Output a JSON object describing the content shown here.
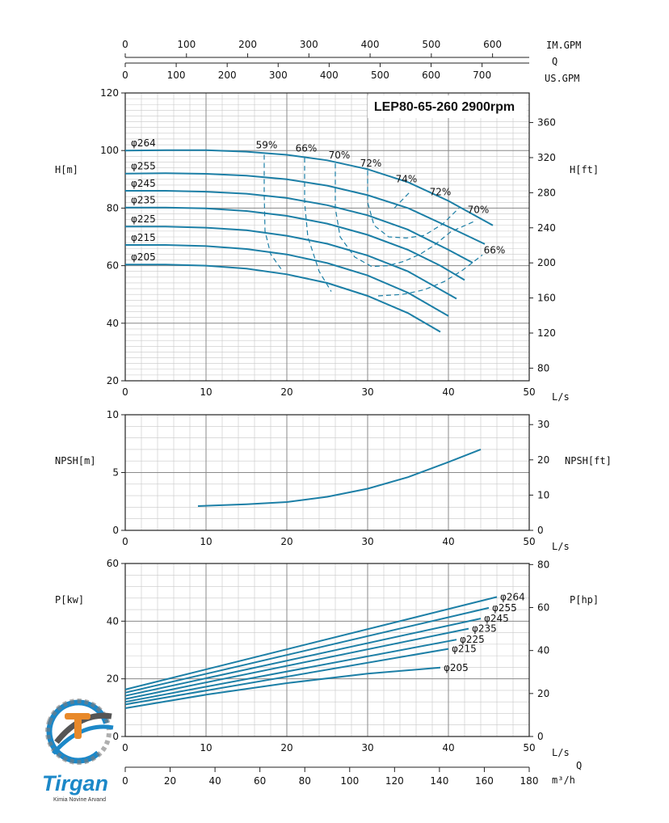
{
  "chart_data": [
    {
      "type": "line",
      "title": "LEP80-65-260 2900rpm",
      "xlabel": "L/s",
      "ylabel": "H[m]",
      "y2label": "H[ft]",
      "xlim": [
        0,
        50
      ],
      "ylim": [
        20,
        120
      ],
      "y2lim": [
        65.6,
        393.7
      ],
      "x_ticks": [
        0,
        10,
        20,
        30,
        40,
        50
      ],
      "y_ticks": [
        20,
        40,
        60,
        80,
        100,
        120
      ],
      "y2_ticks": [
        80,
        120,
        160,
        200,
        240,
        280,
        320,
        360
      ],
      "top_axes": [
        {
          "label": "IM.GPM",
          "ticks": [
            0,
            100,
            200,
            300,
            400,
            500,
            600
          ],
          "per_ls": 13.198
        },
        {
          "label": "Q",
          "ticks": [],
          "per_ls": 0
        },
        {
          "label": "US.GPM",
          "ticks": [
            0,
            100,
            200,
            300,
            400,
            500,
            600,
            700
          ],
          "per_ls": 15.85
        }
      ],
      "grid": true,
      "series": [
        {
          "name": "φ264",
          "x": [
            0,
            5,
            10,
            15,
            20,
            25,
            30,
            35,
            40,
            45.5
          ],
          "y": [
            100,
            100.1,
            100.1,
            99.6,
            98.5,
            96.6,
            93.5,
            89,
            82.5,
            74
          ]
        },
        {
          "name": "φ255",
          "x": [
            0,
            5,
            10,
            15,
            20,
            25,
            30,
            35,
            40,
            44.5
          ],
          "y": [
            92,
            92.1,
            91.9,
            91.3,
            90,
            87.8,
            84.5,
            80,
            73.5,
            67.5
          ]
        },
        {
          "name": "φ245",
          "x": [
            0,
            5,
            10,
            15,
            20,
            25,
            30,
            35,
            40,
            43
          ],
          "y": [
            86,
            86,
            85.7,
            85,
            83.5,
            81,
            77.5,
            72.5,
            65.5,
            61
          ]
        },
        {
          "name": "φ235",
          "x": [
            0,
            5,
            10,
            15,
            20,
            25,
            30,
            35,
            39,
            42
          ],
          "y": [
            80.2,
            80.2,
            79.9,
            79,
            77.3,
            74.6,
            70.7,
            65.5,
            60,
            55
          ]
        },
        {
          "name": "φ225",
          "x": [
            0,
            5,
            10,
            15,
            20,
            25,
            30,
            35,
            41
          ],
          "y": [
            73.6,
            73.6,
            73.2,
            72.3,
            70.4,
            67.6,
            63.5,
            58,
            48.5
          ]
        },
        {
          "name": "φ215",
          "x": [
            0,
            5,
            10,
            15,
            20,
            25,
            30,
            35,
            40
          ],
          "y": [
            67.2,
            67.2,
            66.8,
            65.8,
            63.9,
            60.9,
            56.6,
            50.6,
            42.5
          ]
        },
        {
          "name": "φ205",
          "x": [
            0,
            5,
            10,
            15,
            20,
            25,
            30,
            35,
            39
          ],
          "y": [
            60.4,
            60.4,
            60,
            59,
            57,
            54,
            49.5,
            43.5,
            37
          ]
        }
      ],
      "efficiency_curves": [
        {
          "label": "59%",
          "x": [
            17.2,
            17.2,
            17.3,
            18,
            19.5
          ],
          "y": [
            98.5,
            85,
            72,
            64,
            58
          ]
        },
        {
          "label": "66%",
          "x": [
            22.2,
            22.2,
            22.6,
            24,
            25.5
          ],
          "y": [
            97.5,
            82,
            70,
            58,
            51
          ]
        },
        {
          "label": "70%",
          "x": [
            26,
            26,
            26.6,
            28.4,
            30.5,
            32.5,
            34.5,
            36.5,
            38.2,
            40.3,
            43.3
          ],
          "y": [
            95.5,
            80,
            70,
            63,
            59.7,
            60,
            61.5,
            64,
            67,
            71.8,
            75.5
          ]
        },
        {
          "label": "72%",
          "x": [
            30,
            30,
            30.8,
            32.6,
            34.8,
            37,
            39.3,
            41.3
          ],
          "y": [
            93,
            82,
            74,
            70,
            69.6,
            70.5,
            74.5,
            80
          ]
        },
        {
          "label": "74%",
          "x": [
            33.3,
            35.2
          ],
          "y": [
            80,
            85.5
          ]
        },
        {
          "label": "72%",
          "x": [],
          "y": []
        },
        {
          "label": "70%",
          "x": [],
          "y": []
        },
        {
          "label": "66%",
          "x": [
            31.3,
            34.3,
            37,
            39.5,
            41.8,
            44.2
          ],
          "y": [
            49.5,
            50,
            51.6,
            54.5,
            58.5,
            63.7
          ]
        }
      ],
      "efficiency_labels": [
        {
          "text": "59%",
          "x": 17.5,
          "y": 100.8
        },
        {
          "text": "66%",
          "x": 22.4,
          "y": 99.6
        },
        {
          "text": "70%",
          "x": 26.5,
          "y": 97.3
        },
        {
          "text": "72%",
          "x": 30.4,
          "y": 94.5
        },
        {
          "text": "74%",
          "x": 34.8,
          "y": 88.9
        },
        {
          "text": "72%",
          "x": 39.0,
          "y": 84.4
        },
        {
          "text": "70%",
          "x": 43.7,
          "y": 78.3
        },
        {
          "text": "66%",
          "x": 45.7,
          "y": 64.2
        }
      ]
    },
    {
      "type": "line",
      "xlabel": "L/s",
      "ylabel": "NPSH[m]",
      "y2label": "NPSH[ft]",
      "xlim": [
        0,
        50
      ],
      "ylim": [
        0,
        10
      ],
      "y2lim": [
        0,
        32.8
      ],
      "x_ticks": [
        0,
        10,
        20,
        30,
        40,
        50
      ],
      "y_ticks": [
        0,
        5,
        10
      ],
      "y2_ticks": [
        0,
        10,
        20,
        30
      ],
      "grid": true,
      "series": [
        {
          "name": "",
          "x": [
            9,
            15,
            20,
            25,
            30,
            35,
            40,
            44
          ],
          "y": [
            2.1,
            2.25,
            2.45,
            2.9,
            3.6,
            4.6,
            5.9,
            7.0
          ]
        }
      ]
    },
    {
      "type": "line",
      "xlabel": "L/s",
      "ylabel": "P[kw]",
      "y2label": "P[hp]",
      "xlim": [
        0,
        50
      ],
      "ylim": [
        0,
        60
      ],
      "y2lim": [
        0,
        80.5
      ],
      "x_ticks": [
        0,
        10,
        20,
        30,
        40,
        50
      ],
      "y_ticks": [
        0,
        20,
        40,
        60
      ],
      "y2_ticks": [
        0,
        20,
        40,
        60,
        80
      ],
      "x2label": "m³/h",
      "x2_label_top": "Q",
      "x2_ticks": [
        0,
        20,
        40,
        60,
        80,
        100,
        120,
        140,
        160,
        180
      ],
      "x2_per_ls": 3.6,
      "grid": true,
      "series": [
        {
          "name": "φ264",
          "x": [
            0,
            46
          ],
          "y": [
            16.3,
            48.4
          ]
        },
        {
          "name": "φ255",
          "x": [
            0,
            45
          ],
          "y": [
            15.2,
            44.6
          ]
        },
        {
          "name": "φ245",
          "x": [
            0,
            44
          ],
          "y": [
            14.1,
            40.9
          ]
        },
        {
          "name": "φ235",
          "x": [
            0,
            42.5
          ],
          "y": [
            13,
            37.4
          ]
        },
        {
          "name": "φ225",
          "x": [
            0,
            41
          ],
          "y": [
            12,
            33.6
          ]
        },
        {
          "name": "φ215",
          "x": [
            0,
            40
          ],
          "y": [
            11.1,
            30.4
          ]
        },
        {
          "name": "φ205",
          "x": [
            0,
            10,
            20,
            30,
            39
          ],
          "y": [
            9.8,
            14.5,
            18.5,
            21.8,
            23.9
          ]
        }
      ]
    }
  ],
  "logo": {
    "word": "Tirgan",
    "tagline": "Kimia Novine Arvand",
    "color": "#1c88c8",
    "accent": "#e8892a"
  },
  "colors": {
    "curve": "#1c7fa6",
    "grid": "#8a8a8a",
    "minor_grid": "#c8c8c8",
    "axis": "#222222"
  }
}
